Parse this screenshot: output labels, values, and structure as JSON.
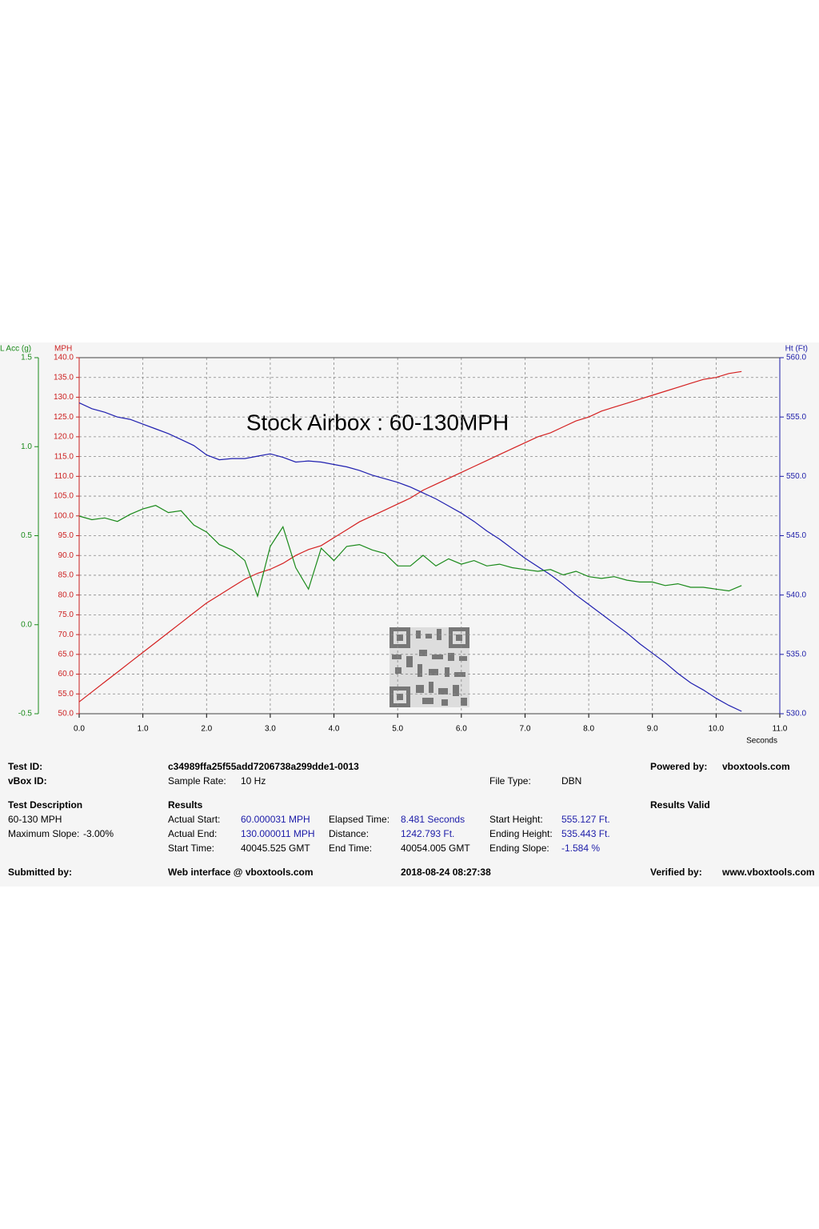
{
  "chart_data": {
    "type": "line",
    "title": "Stock Airbox : 60-130MPH",
    "xlabel": "Seconds",
    "ylabel": "MPH",
    "y2label": "Ht (Ft)",
    "y3label": "L Acc (g)",
    "xlim": [
      0,
      11
    ],
    "xticks": [
      {
        "value": 0,
        "label": "0.0"
      },
      {
        "value": 1,
        "label": "1.0"
      },
      {
        "value": 2,
        "label": "2.0"
      },
      {
        "value": 3,
        "label": "3.0"
      },
      {
        "value": 4,
        "label": "4.0"
      },
      {
        "value": 5,
        "label": "5.0"
      },
      {
        "value": 6,
        "label": "6.0"
      },
      {
        "value": 7,
        "label": "7.0"
      },
      {
        "value": 8,
        "label": "8.0"
      },
      {
        "value": 9,
        "label": "9.0"
      },
      {
        "value": 10,
        "label": "10.0"
      },
      {
        "value": 11,
        "label": "11.0"
      }
    ],
    "ylim": [
      50,
      140
    ],
    "yticks": [
      {
        "value": 50,
        "label": "50.0"
      },
      {
        "value": 55,
        "label": "55.0"
      },
      {
        "value": 60,
        "label": "60.0"
      },
      {
        "value": 65,
        "label": "65.0"
      },
      {
        "value": 70,
        "label": "70.0"
      },
      {
        "value": 75,
        "label": "75.0"
      },
      {
        "value": 80,
        "label": "80.0"
      },
      {
        "value": 85,
        "label": "85.0"
      },
      {
        "value": 90,
        "label": "90.0"
      },
      {
        "value": 95,
        "label": "95.0"
      },
      {
        "value": 100,
        "label": "100.0"
      },
      {
        "value": 105,
        "label": "105.0"
      },
      {
        "value": 110,
        "label": "110.0"
      },
      {
        "value": 115,
        "label": "115.0"
      },
      {
        "value": 120,
        "label": "120.0"
      },
      {
        "value": 125,
        "label": "125.0"
      },
      {
        "value": 130,
        "label": "130.0"
      },
      {
        "value": 135,
        "label": "135.0"
      },
      {
        "value": 140,
        "label": "140.0"
      }
    ],
    "y2lim": [
      530,
      560
    ],
    "y2ticks": [
      {
        "value": 530,
        "label": "530.0"
      },
      {
        "value": 535,
        "label": "535.0"
      },
      {
        "value": 540,
        "label": "540.0"
      },
      {
        "value": 545,
        "label": "545.0"
      },
      {
        "value": 550,
        "label": "550.0"
      },
      {
        "value": 555,
        "label": "555.0"
      },
      {
        "value": 560,
        "label": "560.0"
      }
    ],
    "y3lim": [
      -0.5,
      1.5
    ],
    "y3ticks": [
      -0.5,
      {
        "value": 0,
        "label": "0.0"
      },
      0.5,
      {
        "value": 1,
        "label": "1.0"
      },
      1.5
    ],
    "ycolor": "#cc1f1f",
    "y2color": "#1c1ca8",
    "y3color": "#1a8a1a",
    "grid": true,
    "x": [
      0,
      0.2,
      0.4,
      0.6,
      0.8,
      1,
      1.2,
      1.4,
      1.6,
      1.8,
      2,
      2.2,
      2.4,
      2.6,
      2.8,
      3,
      3.2,
      3.4,
      3.6,
      3.8,
      4,
      4.2,
      4.4,
      4.6,
      4.8,
      5,
      5.2,
      5.4,
      5.6,
      5.8,
      6,
      6.2,
      6.4,
      6.6,
      6.8,
      7,
      7.2,
      7.4,
      7.6,
      7.8,
      8,
      8.2,
      8.4,
      8.6,
      8.8,
      9,
      9.2,
      9.4,
      9.6,
      9.8,
      10,
      10.2,
      10.4
    ],
    "series": [
      {
        "color": "#d42020",
        "axis": "y",
        "values": [
          53,
          55.5,
          58,
          60.5,
          63,
          65.5,
          68,
          70.5,
          73,
          75.5,
          78,
          80,
          82,
          84,
          85.5,
          86.5,
          88,
          90,
          91.5,
          92.5,
          94.5,
          96.5,
          98.5,
          100,
          101.5,
          103,
          104.5,
          106.5,
          108,
          109.5,
          111,
          112.5,
          114,
          115.5,
          117,
          118.5,
          120,
          121,
          122.5,
          124,
          125,
          126.5,
          127.5,
          128.5,
          129.5,
          130.5,
          131.5,
          132.5,
          133.5,
          134.5,
          135,
          136,
          136.5
        ]
      },
      {
        "color": "#2020b0",
        "axis": "y2",
        "values": [
          556.2,
          555.7,
          555.4,
          555,
          554.8,
          554.4,
          554,
          553.6,
          553.1,
          552.6,
          551.8,
          551.4,
          551.5,
          551.5,
          551.7,
          551.9,
          551.6,
          551.2,
          551.3,
          551.2,
          551,
          550.8,
          550.5,
          550.1,
          549.8,
          549.5,
          549.1,
          548.6,
          548.1,
          547.5,
          546.9,
          546.2,
          545.4,
          544.7,
          543.9,
          543.1,
          542.4,
          541.7,
          540.9,
          540,
          539.2,
          538.4,
          537.6,
          536.8,
          535.9,
          535.1,
          534.3,
          533.4,
          532.6,
          532,
          531.3,
          530.7,
          530.2
        ]
      },
      {
        "color": "#1a8a1a",
        "axis": "y3",
        "values": [
          0.61,
          0.59,
          0.6,
          0.58,
          0.62,
          0.65,
          0.67,
          0.63,
          0.64,
          0.56,
          0.52,
          0.45,
          0.42,
          0.36,
          0.16,
          0.44,
          0.55,
          0.32,
          0.2,
          0.43,
          0.36,
          0.44,
          0.45,
          0.42,
          0.4,
          0.33,
          0.33,
          0.39,
          0.33,
          0.37,
          0.34,
          0.36,
          0.33,
          0.34,
          0.32,
          0.31,
          0.3,
          0.31,
          0.28,
          0.3,
          0.27,
          0.26,
          0.27,
          0.25,
          0.24,
          0.24,
          0.22,
          0.23,
          0.21,
          0.21,
          0.2,
          0.19,
          0.22
        ]
      }
    ]
  },
  "report": {
    "test_id_label": "Test ID:",
    "test_id": "c34989ffa25f55add7206738a299dde1-0013",
    "powered_by_label": "Powered by:",
    "powered_by": "vboxtools.com",
    "vbox_id_label": "vBox ID:",
    "sample_rate_label": "Sample Rate:",
    "sample_rate": "10 Hz",
    "file_type_label": "File Type:",
    "file_type": "DBN",
    "test_description_label": "Test Description",
    "test_description": "60-130 MPH",
    "max_slope_label": "Maximum Slope:",
    "max_slope": "-3.00%",
    "results_label": "Results",
    "results_valid": "Results Valid",
    "actual_start_label": "Actual Start:",
    "actual_start": "60.000031 MPH",
    "actual_end_label": "Actual End:",
    "actual_end": "130.000011 MPH",
    "start_time_label": "Start Time:",
    "start_time": "40045.525 GMT",
    "elapsed_time_label": "Elapsed Time:",
    "elapsed_time": "8.481 Seconds",
    "distance_label": "Distance:",
    "distance": "1242.793 Ft.",
    "end_time_label": "End Time:",
    "end_time": "40054.005 GMT",
    "start_height_label": "Start Height:",
    "start_height": "555.127 Ft.",
    "ending_height_label": "Ending Height:",
    "ending_height": "535.443 Ft.",
    "ending_slope_label": "Ending Slope:",
    "ending_slope": "-1.584 %",
    "submitted_by_label": "Submitted by:",
    "submitted_by": "Web interface @ vboxtools.com",
    "timestamp": "2018-08-24 08:27:38",
    "verified_by_label": "Verified by:",
    "verified_by": "www.vboxtools.com"
  }
}
